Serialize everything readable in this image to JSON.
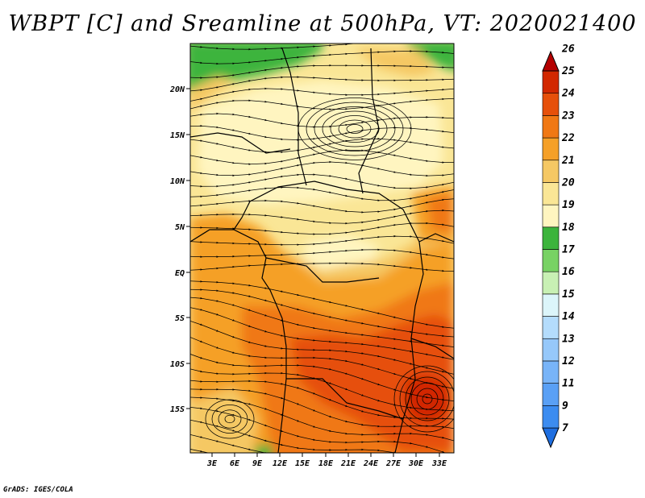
{
  "title": "WBPT [C] and Sreamline at 500hPa, VT: 2020021400",
  "footer": "GrADS: IGES/COLA",
  "map": {
    "lat_labels": [
      "20N",
      "15N",
      "10N",
      "5N",
      "EQ",
      "5S",
      "10S",
      "15S"
    ],
    "lon_labels": [
      "3E",
      "6E",
      "9E",
      "12E",
      "15E",
      "18E",
      "21E",
      "24E",
      "27E",
      "30E",
      "33E"
    ]
  },
  "colorbar": {
    "labels": [
      "7",
      "9",
      "11",
      "12",
      "13",
      "14",
      "15",
      "16",
      "17",
      "18",
      "19",
      "20",
      "21",
      "22",
      "23",
      "24",
      "25",
      "26"
    ],
    "colors": [
      "#1e6ee0",
      "#3c8cf0",
      "#5aa0f5",
      "#78b4f8",
      "#96c8fa",
      "#b4dcfc",
      "#dcf5fa",
      "#c8f0b4",
      "#78d264",
      "#3cb43c",
      "#fff5c0",
      "#fae696",
      "#f5c864",
      "#f5a028",
      "#f07814",
      "#e6500a",
      "#d22800",
      "#b40000"
    ]
  },
  "palette": {
    "green": "#3cb43c",
    "light_yellow": "#fff5c0",
    "yellow": "#fae696",
    "light_orange": "#f5c864",
    "orange": "#f5a028",
    "dark_orange": "#f07814",
    "red_orange": "#e6500a",
    "red": "#d22800"
  }
}
